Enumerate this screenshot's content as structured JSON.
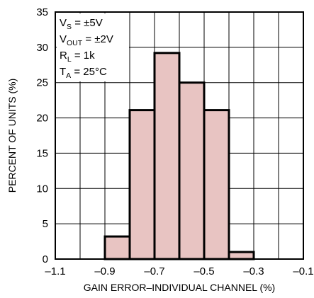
{
  "chart_data": {
    "type": "bar",
    "title": "",
    "xlabel": "GAIN ERROR–INDIVIDUAL CHANNEL (%)",
    "ylabel": "PERCENT OF UNITS (%)",
    "xlim": [
      -1.1,
      -0.1
    ],
    "ylim": [
      0,
      35
    ],
    "bin_width": 0.1,
    "x_ticks": [
      "–1.1",
      "–0.9",
      "–0.7",
      "–0.5",
      "–0.3",
      "–0.1"
    ],
    "x_tick_values": [
      -1.1,
      -0.9,
      -0.7,
      -0.5,
      -0.3,
      -0.1
    ],
    "y_ticks": [
      "0",
      "5",
      "10",
      "15",
      "20",
      "25",
      "30",
      "35"
    ],
    "y_tick_values": [
      0,
      5,
      10,
      15,
      20,
      25,
      30,
      35
    ],
    "bins": [
      {
        "center": -0.85,
        "value": 3.2
      },
      {
        "center": -0.75,
        "value": 21.1
      },
      {
        "center": -0.65,
        "value": 29.2
      },
      {
        "center": -0.55,
        "value": 25.0
      },
      {
        "center": -0.45,
        "value": 21.1
      },
      {
        "center": -0.35,
        "value": 1.0
      }
    ],
    "grid": true,
    "annotations": [
      {
        "main": "V",
        "sub": "S",
        "rest": " = ±5V"
      },
      {
        "main": "V",
        "sub": "OUT",
        "rest": " = ±2V"
      },
      {
        "main": "R",
        "sub": "L",
        "rest": " = 1k"
      },
      {
        "main": "T",
        "sub": "A",
        "rest": " = 25°C"
      }
    ]
  }
}
